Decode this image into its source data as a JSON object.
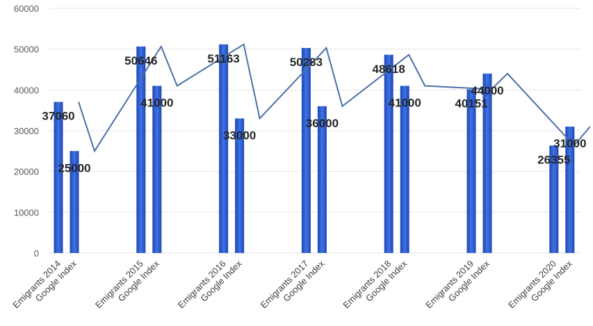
{
  "chart_data": {
    "type": "bar",
    "title": "",
    "xlabel": "",
    "ylabel": "",
    "ylim": [
      0,
      60000
    ],
    "yticks": [
      0,
      10000,
      20000,
      30000,
      40000,
      50000,
      60000
    ],
    "grid": true,
    "legend": "none",
    "bar_color": "#2f5fd0",
    "line_color": "#4a6fa5",
    "categories": [
      "Emigrants 2014",
      "Google Index",
      "Emigrants 2015",
      "Google Index",
      "Emigrants 2016",
      "Google Index",
      "Emigrants 2017",
      "Google Index",
      "Emigrants 2018",
      "Google Index",
      "Emigrants 2019",
      "Google Index",
      "Emigrants 2020",
      "Google Index"
    ],
    "values": [
      37060,
      25000,
      50646,
      41000,
      51163,
      33000,
      50283,
      36000,
      48618,
      41000,
      40151,
      44000,
      26355,
      31000
    ],
    "data_labels": [
      "37060",
      "25000",
      "50646",
      "41000",
      "51163",
      "33000",
      "50283",
      "36000",
      "48618",
      "41000",
      "40151",
      "44000",
      "26355",
      "31000"
    ],
    "line_values": [
      37060,
      25000,
      50646,
      41000,
      51163,
      33000,
      50283,
      36000,
      48618,
      41000,
      40151,
      44000,
      26355,
      31000
    ]
  }
}
